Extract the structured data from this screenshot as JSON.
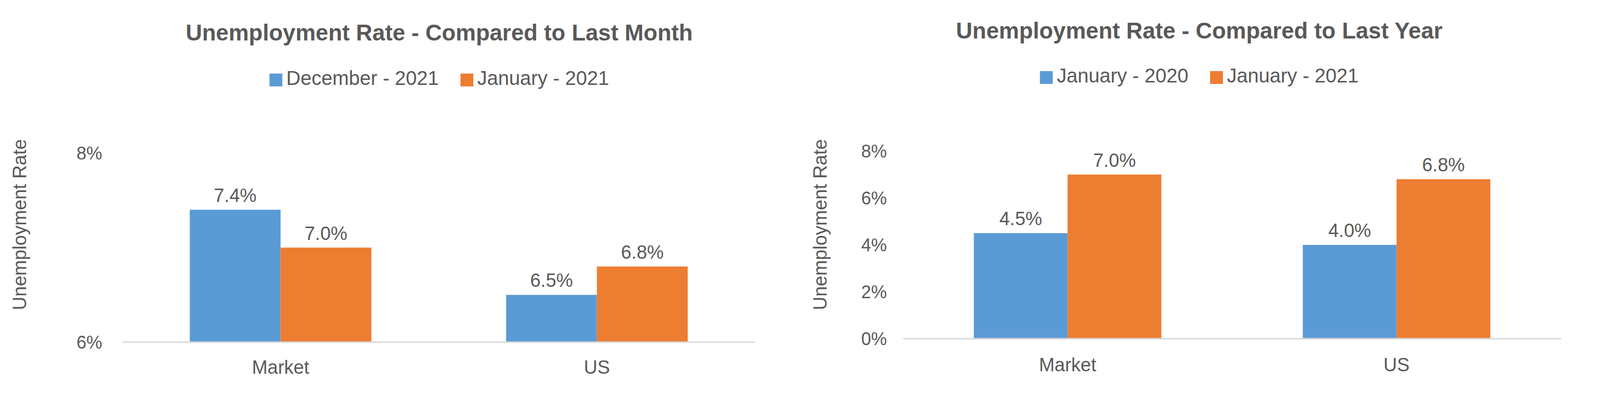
{
  "chart_data": [
    {
      "type": "bar",
      "title": "Unemployment Rate - Compared to Last Month",
      "ylabel": "Unemployment Rate",
      "categories": [
        "Market",
        "US"
      ],
      "series": [
        {
          "name": "December - 2021",
          "color": "#5B9BD5",
          "values": [
            7.4,
            6.5
          ],
          "value_labels": [
            "7.4%",
            "6.5%"
          ]
        },
        {
          "name": "January - 2021",
          "color": "#ED7D31",
          "values": [
            7.0,
            6.8
          ],
          "value_labels": [
            "7.0%",
            "6.8%"
          ]
        }
      ],
      "ylim": [
        6,
        8
      ],
      "yticks": [
        {
          "value": 6,
          "label": "6%"
        },
        {
          "value": 8,
          "label": "8%"
        }
      ],
      "grid": false,
      "legend": "top",
      "data_labels": true
    },
    {
      "type": "bar",
      "title": "Unemployment Rate - Compared to Last Year",
      "ylabel": "Unemployment Rate",
      "categories": [
        "Market",
        "US"
      ],
      "series": [
        {
          "name": "January - 2020",
          "color": "#5B9BD5",
          "values": [
            4.5,
            4.0
          ],
          "value_labels": [
            "4.5%",
            "4.0%"
          ]
        },
        {
          "name": "January - 2021",
          "color": "#ED7D31",
          "values": [
            7.0,
            6.8
          ],
          "value_labels": [
            "7.0%",
            "6.8%"
          ]
        }
      ],
      "ylim": [
        0,
        8
      ],
      "yticks": [
        {
          "value": 0,
          "label": "0%"
        },
        {
          "value": 2,
          "label": "2%"
        },
        {
          "value": 4,
          "label": "4%"
        },
        {
          "value": 6,
          "label": "6%"
        },
        {
          "value": 8,
          "label": "8%"
        }
      ],
      "grid": false,
      "legend": "top",
      "data_labels": true
    }
  ]
}
